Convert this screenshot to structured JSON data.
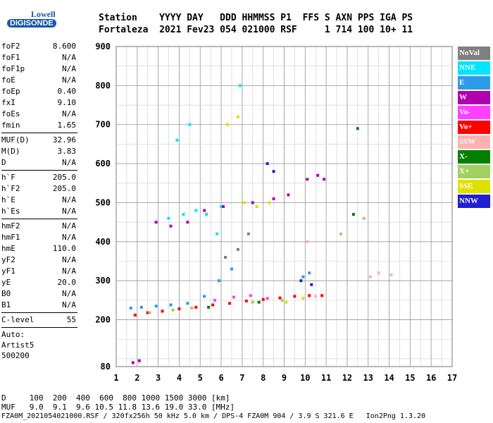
{
  "logo": {
    "brand": "Lowell",
    "name": "DIGISONDE"
  },
  "header": {
    "line1": "Station    YYYY DAY   DDD HHMMSS P1  FFS S AXN PPS IGA PS",
    "line2": "Fortaleza  2021 Fev23 054 021000 RSF     1 714 100 10+ 11"
  },
  "params_groups": [
    [
      {
        "n": "foF2",
        "v": "8.600"
      },
      {
        "n": "foF1",
        "v": "N/A"
      },
      {
        "n": "foF1p",
        "v": "N/A"
      },
      {
        "n": "foE",
        "v": "N/A"
      },
      {
        "n": "foEp",
        "v": "0.40"
      },
      {
        "n": "fxI",
        "v": "9.10"
      },
      {
        "n": "foEs",
        "v": "N/A"
      },
      {
        "n": "fmin",
        "v": "1.65"
      }
    ],
    [
      {
        "n": "MUF(D)",
        "v": "32.96"
      },
      {
        "n": "M(D)",
        "v": "3.83"
      },
      {
        "n": "D",
        "v": "N/A"
      }
    ],
    [
      {
        "n": "h`F",
        "v": "205.0"
      },
      {
        "n": "h`F2",
        "v": "205.0"
      },
      {
        "n": "h`E",
        "v": "N/A"
      },
      {
        "n": "h`Es",
        "v": "N/A"
      }
    ],
    [
      {
        "n": "hmF2",
        "v": "N/A"
      },
      {
        "n": "hmF1",
        "v": "N/A"
      },
      {
        "n": "hmE",
        "v": "110.0"
      },
      {
        "n": "yF2",
        "v": "N/A"
      },
      {
        "n": "yF1",
        "v": "N/A"
      },
      {
        "n": "yE",
        "v": "20.0"
      },
      {
        "n": "B0",
        "v": "N/A"
      },
      {
        "n": "B1",
        "v": "N/A"
      }
    ],
    [
      {
        "n": "C-level",
        "v": "55"
      }
    ]
  ],
  "extra": [
    "Auto:",
    "Artist5",
    "500200"
  ],
  "legend": [
    {
      "label": "NoVal",
      "color": "#808080"
    },
    {
      "label": "NNE",
      "color": "#00e5ff"
    },
    {
      "label": "E",
      "color": "#2e9be8"
    },
    {
      "label": "W",
      "color": "#b000b0"
    },
    {
      "label": "Vo-",
      "color": "#ff40ff"
    },
    {
      "label": "Vo+",
      "color": "#ff0000"
    },
    {
      "label": "SSW",
      "color": "#ffb0b0"
    },
    {
      "label": "X-",
      "color": "#008000"
    },
    {
      "label": "X+",
      "color": "#a0d060"
    },
    {
      "label": "SSE",
      "color": "#e0e000"
    },
    {
      "label": "NNW",
      "color": "#2020d0"
    }
  ],
  "footer": {
    "line1": "D     100  200  400  600  800 1000 1500 3000 [km]",
    "line2": "MUF   9.0  9.1  9.6 10.5 11.8 13.6 19.0 33.0 [MHz]",
    "line3": "FZA0M_2021054021000.RSF / 320fx256h 50 kHz 5.0 km / DPS-4 FZA0M 904 / 3.9 S 321.6 E   Ion2Png 1.3.20"
  },
  "chart_data": {
    "type": "scatter",
    "x_ticks": [
      "1",
      "2",
      "3",
      "4",
      "5",
      "6",
      "7",
      "8",
      "9",
      "10",
      "11",
      "12",
      "13",
      "14",
      "15",
      "16",
      "17"
    ],
    "y_ticks": [
      "80",
      "200",
      "300",
      "400",
      "500",
      "600",
      "700",
      "800",
      "900"
    ],
    "xlim": [
      1,
      17
    ],
    "ylim": [
      80,
      900
    ],
    "grid": true,
    "series": [
      {
        "name": "Vo+",
        "color": "#ff0000",
        "points": [
          [
            1.9,
            212
          ],
          [
            2.5,
            218
          ],
          [
            3.2,
            222
          ],
          [
            4,
            228
          ],
          [
            4.8,
            232
          ],
          [
            5.6,
            238
          ],
          [
            6.4,
            242
          ],
          [
            7.2,
            248
          ],
          [
            8,
            252
          ],
          [
            8.8,
            256
          ],
          [
            9.5,
            260
          ],
          [
            10.2,
            262
          ],
          [
            10.8,
            262
          ]
        ]
      },
      {
        "name": "E",
        "color": "#2e9be8",
        "points": [
          [
            1.7,
            230
          ],
          [
            2.2,
            232
          ],
          [
            2.9,
            235
          ],
          [
            3.6,
            238
          ],
          [
            4.4,
            242
          ],
          [
            5.2,
            260
          ],
          [
            5.9,
            300
          ],
          [
            6.5,
            330
          ],
          [
            9.9,
            310
          ],
          [
            10.2,
            320
          ]
        ]
      },
      {
        "name": "NNE",
        "color": "#00e5ff",
        "points": [
          [
            3.5,
            460
          ],
          [
            4.2,
            470
          ],
          [
            4.8,
            480
          ],
          [
            5.3,
            470
          ],
          [
            6,
            490
          ],
          [
            3.9,
            660
          ],
          [
            4.5,
            700
          ],
          [
            5.8,
            420
          ],
          [
            6.9,
            800
          ]
        ]
      },
      {
        "name": "W",
        "color": "#b000b0",
        "points": [
          [
            2.9,
            450
          ],
          [
            3.6,
            440
          ],
          [
            4.4,
            450
          ],
          [
            5.2,
            480
          ],
          [
            6.1,
            490
          ],
          [
            7.5,
            500
          ],
          [
            8.5,
            510
          ],
          [
            9.2,
            520
          ],
          [
            10.1,
            560
          ],
          [
            10.6,
            570
          ],
          [
            10.9,
            560
          ],
          [
            2.1,
            95
          ],
          [
            1.8,
            90
          ]
        ]
      },
      {
        "name": "SSE",
        "color": "#e0e000",
        "points": [
          [
            7.1,
            500
          ],
          [
            7.7,
            490
          ],
          [
            8.3,
            500
          ],
          [
            9.1,
            245
          ],
          [
            9.9,
            255
          ],
          [
            6.3,
            700
          ],
          [
            6.8,
            720
          ]
        ]
      },
      {
        "name": "X+",
        "color": "#a0d060",
        "points": [
          [
            2.6,
            218
          ],
          [
            3.7,
            225
          ],
          [
            4.6,
            230
          ],
          [
            7.5,
            245
          ],
          [
            8.9,
            250
          ],
          [
            11.7,
            420
          ],
          [
            12.8,
            460
          ]
        ]
      },
      {
        "name": "X-",
        "color": "#008000",
        "points": [
          [
            5.4,
            232
          ],
          [
            7.8,
            245
          ],
          [
            12.5,
            690
          ],
          [
            12.3,
            470
          ]
        ]
      },
      {
        "name": "SSW",
        "color": "#ffb0b0",
        "points": [
          [
            13.1,
            310
          ],
          [
            13.5,
            320
          ],
          [
            14.1,
            315
          ],
          [
            10.1,
            400
          ],
          [
            10.5,
            260
          ]
        ]
      },
      {
        "name": "NNW",
        "color": "#2020d0",
        "points": [
          [
            8.5,
            580
          ],
          [
            8.2,
            600
          ],
          [
            9.8,
            300
          ],
          [
            10.3,
            290
          ]
        ]
      },
      {
        "name": "Vo-",
        "color": "#ff40ff",
        "points": [
          [
            5.7,
            250
          ],
          [
            6.6,
            258
          ],
          [
            7.4,
            262
          ],
          [
            8.2,
            255
          ]
        ]
      },
      {
        "name": "NoVal",
        "color": "#808080",
        "points": [
          [
            6.2,
            360
          ],
          [
            6.8,
            380
          ],
          [
            7.3,
            420
          ]
        ]
      }
    ]
  }
}
